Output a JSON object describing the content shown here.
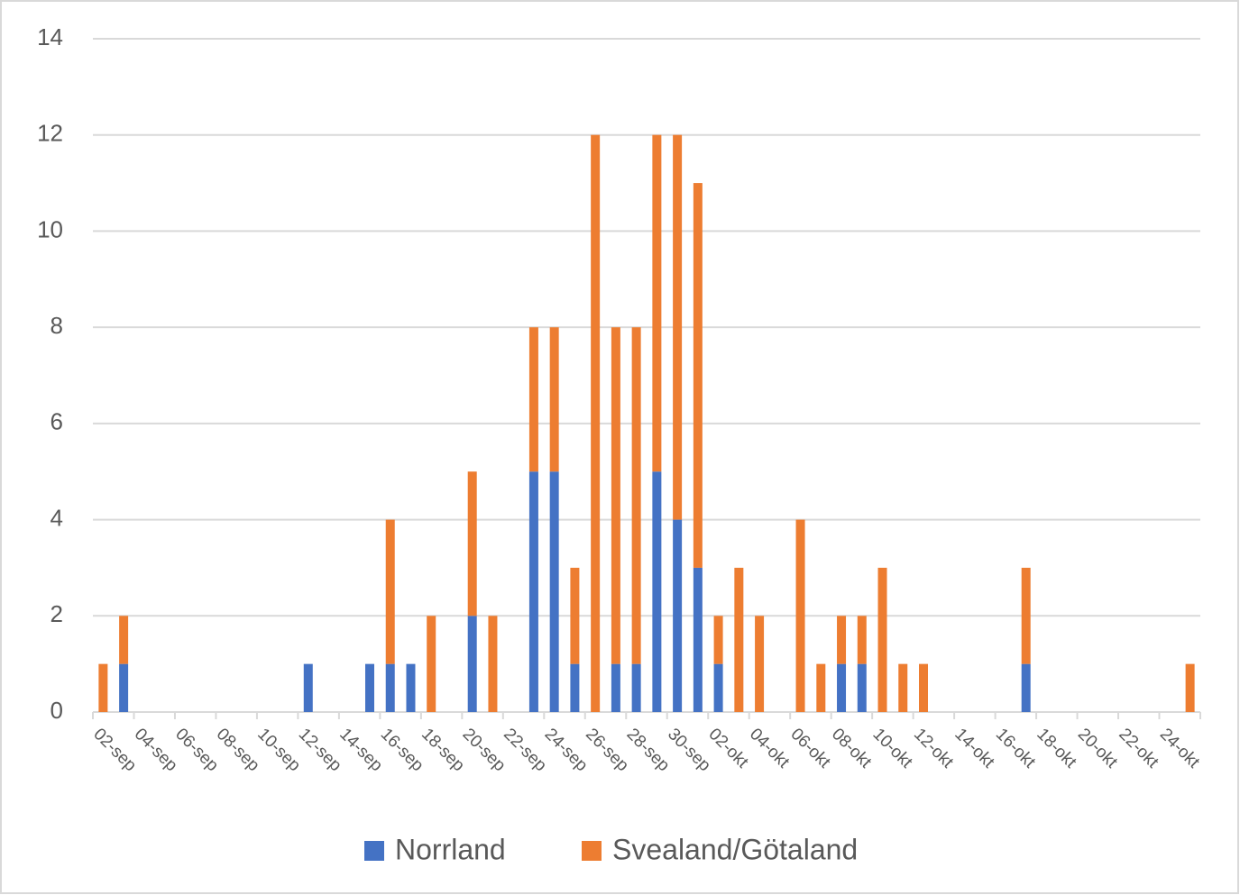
{
  "chart_data": {
    "type": "bar",
    "stacked": true,
    "categories": [
      "02-sep",
      null,
      "04-sep",
      null,
      "06-sep",
      null,
      "08-sep",
      null,
      "10-sep",
      null,
      "12-sep",
      null,
      "14-sep",
      null,
      "16-sep",
      null,
      "18-sep",
      null,
      "20-sep",
      null,
      "22-sep",
      null,
      "24-sep",
      null,
      "26-sep",
      null,
      "28-sep",
      null,
      "30-sep",
      null,
      "02-okt",
      null,
      "04-okt",
      null,
      "06-okt",
      null,
      "08-okt",
      null,
      "10-okt",
      null,
      "12-okt",
      null,
      "14-okt",
      null,
      "16-okt",
      null,
      "18-okt",
      null,
      "20-okt",
      null,
      "22-okt",
      null,
      "24-okt",
      null
    ],
    "series": [
      {
        "name": "Norrland",
        "color": "#4472c4",
        "values": [
          0,
          1,
          0,
          0,
          0,
          0,
          0,
          0,
          0,
          0,
          1,
          0,
          0,
          1,
          1,
          1,
          0,
          0,
          2,
          0,
          0,
          5,
          5,
          1,
          0,
          1,
          1,
          5,
          4,
          3,
          1,
          0,
          0,
          0,
          0,
          0,
          1,
          1,
          0,
          0,
          0,
          0,
          0,
          0,
          0,
          1,
          0,
          0,
          0,
          0,
          0,
          0,
          0,
          0
        ]
      },
      {
        "name": "Svealand/Götaland",
        "color": "#ed7d31",
        "values": [
          1,
          1,
          0,
          0,
          0,
          0,
          0,
          0,
          0,
          0,
          0,
          0,
          0,
          0,
          3,
          0,
          2,
          0,
          3,
          2,
          0,
          3,
          3,
          2,
          12,
          7,
          7,
          7,
          8,
          8,
          1,
          3,
          2,
          0,
          4,
          1,
          1,
          1,
          3,
          1,
          1,
          0,
          0,
          0,
          0,
          2,
          0,
          0,
          0,
          0,
          0,
          0,
          0,
          1
        ]
      }
    ],
    "ylim": [
      0,
      14
    ],
    "yticks": [
      0,
      2,
      4,
      6,
      8,
      10,
      12,
      14
    ],
    "grid": true,
    "legend": "bottom"
  }
}
